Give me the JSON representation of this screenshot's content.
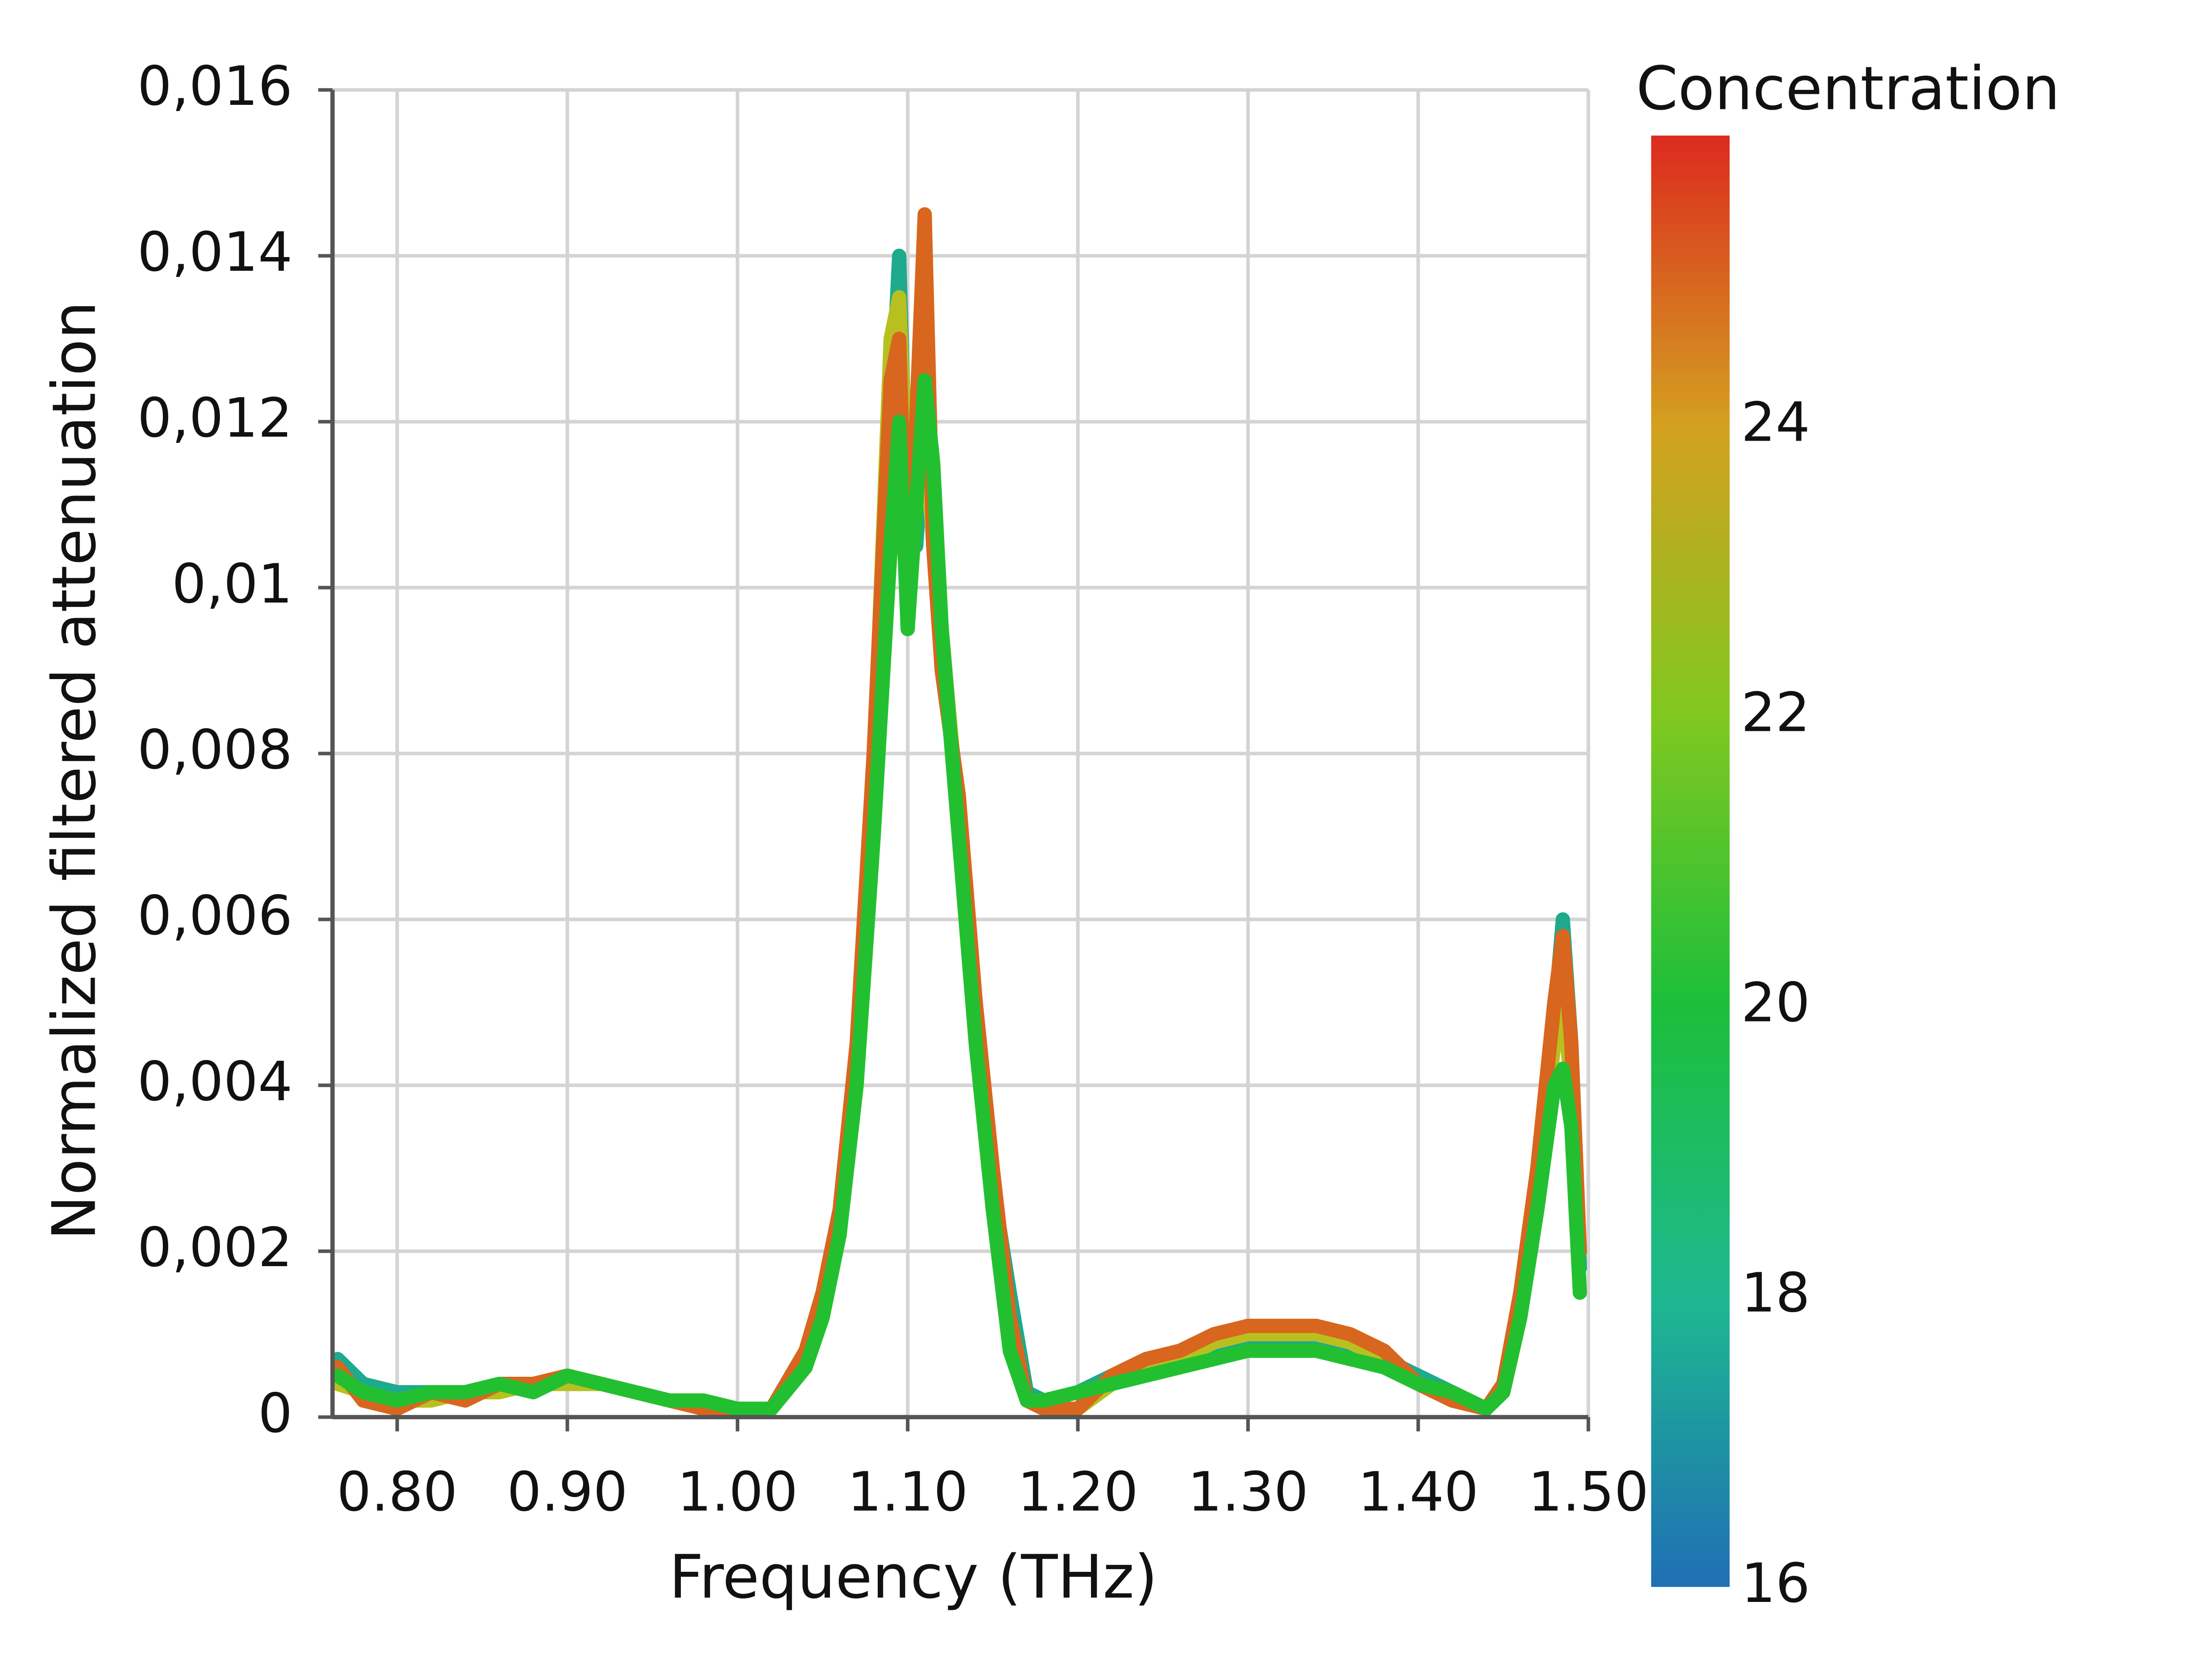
{
  "chart_data": {
    "type": "line",
    "x_label": "Frequency (THz)",
    "y_label": "Normalized filtered attenuation",
    "xlim": [
      0.762,
      1.5
    ],
    "xticks": [
      {
        "value": 0.8,
        "label": "0.80"
      },
      {
        "value": 0.9,
        "label": "0.90"
      },
      {
        "value": 1.0,
        "label": "1.00"
      },
      {
        "value": 1.1,
        "label": "1.10"
      },
      {
        "value": 1.2,
        "label": "1.20"
      },
      {
        "value": 1.3,
        "label": "1.30"
      },
      {
        "value": 1.4,
        "label": "1.40"
      },
      {
        "value": 1.5,
        "label": "1.50"
      }
    ],
    "ylim": [
      0,
      0.016
    ],
    "yticks": [
      0,
      {
        "value": 0.002,
        "label": "0,002"
      },
      {
        "value": 0.004,
        "label": "0,004"
      },
      {
        "value": 0.006,
        "label": "0,006"
      },
      {
        "value": 0.008,
        "label": "0,008"
      },
      {
        "value": 0.01,
        "label": "0,01"
      },
      {
        "value": 0.012,
        "label": "0,012"
      },
      {
        "value": 0.014,
        "label": "0,014"
      },
      {
        "value": 0.016,
        "label": "0,016"
      }
    ],
    "grid": true,
    "x": [
      0.765,
      0.78,
      0.8,
      0.82,
      0.84,
      0.86,
      0.88,
      0.9,
      0.92,
      0.94,
      0.96,
      0.98,
      1.0,
      1.02,
      1.04,
      1.05,
      1.06,
      1.07,
      1.08,
      1.09,
      1.095,
      1.1,
      1.105,
      1.11,
      1.115,
      1.12,
      1.13,
      1.14,
      1.15,
      1.16,
      1.17,
      1.18,
      1.2,
      1.22,
      1.24,
      1.26,
      1.28,
      1.3,
      1.32,
      1.34,
      1.36,
      1.38,
      1.4,
      1.42,
      1.44,
      1.45,
      1.46,
      1.47,
      1.48,
      1.485,
      1.49,
      1.495
    ],
    "series": [
      {
        "color": "#1eaa8c",
        "values": [
          0.0007,
          0.0004,
          0.0003,
          0.0003,
          0.0003,
          0.0004,
          0.0004,
          0.0004,
          0.0004,
          0.0003,
          0.0002,
          0.0002,
          0.0001,
          0.0001,
          0.0006,
          0.0012,
          0.0022,
          0.0042,
          0.0075,
          0.012,
          0.014,
          0.0105,
          0.0105,
          0.012,
          0.011,
          0.0095,
          0.0072,
          0.005,
          0.0028,
          0.0015,
          0.0003,
          0.0002,
          0.0003,
          0.0005,
          0.0006,
          0.0007,
          0.0008,
          0.0009,
          0.0009,
          0.0009,
          0.0008,
          0.0007,
          0.0005,
          0.0003,
          0.0001,
          0.0004,
          0.0013,
          0.0028,
          0.0048,
          0.006,
          0.0045,
          0.0018
        ]
      },
      {
        "color": "#b8c020",
        "values": [
          0.0004,
          0.0003,
          0.0002,
          0.0002,
          0.0003,
          0.0003,
          0.0004,
          0.0004,
          0.0004,
          0.0003,
          0.0002,
          0.0002,
          0.0001,
          0.0001,
          0.0006,
          0.0013,
          0.0023,
          0.0043,
          0.0078,
          0.013,
          0.0135,
          0.011,
          0.0115,
          0.012,
          0.0105,
          0.0095,
          0.0072,
          0.0048,
          0.0025,
          0.001,
          0.0002,
          0.0001,
          0.0001,
          0.0004,
          0.0006,
          0.0007,
          0.0009,
          0.001,
          0.001,
          0.001,
          0.0009,
          0.0007,
          0.0004,
          0.0002,
          0.0001,
          0.0004,
          0.0014,
          0.0028,
          0.0045,
          0.005,
          0.004,
          0.002
        ]
      },
      {
        "color": "#d8661e",
        "values": [
          0.0006,
          0.0002,
          0.0001,
          0.0003,
          0.0002,
          0.0004,
          0.0004,
          0.0005,
          0.0004,
          0.0003,
          0.0002,
          0.0001,
          0.0001,
          0.0001,
          0.0008,
          0.0015,
          0.0025,
          0.0045,
          0.008,
          0.0125,
          0.013,
          0.0095,
          0.012,
          0.0145,
          0.0105,
          0.009,
          0.0075,
          0.005,
          0.003,
          0.0012,
          0.0002,
          0.0001,
          0.0001,
          0.0005,
          0.0007,
          0.0008,
          0.001,
          0.0011,
          0.0011,
          0.0011,
          0.001,
          0.0008,
          0.0004,
          0.0002,
          0.0001,
          0.0004,
          0.0015,
          0.003,
          0.005,
          0.0058,
          0.0045,
          0.002
        ]
      },
      {
        "color": "#22c030",
        "values": [
          0.0005,
          0.0003,
          0.0002,
          0.0003,
          0.0003,
          0.0004,
          0.0003,
          0.0005,
          0.0004,
          0.0003,
          0.0002,
          0.0002,
          0.0001,
          0.0001,
          0.0006,
          0.0012,
          0.0022,
          0.004,
          0.007,
          0.0105,
          0.012,
          0.0095,
          0.011,
          0.0125,
          0.0115,
          0.0095,
          0.007,
          0.0045,
          0.0025,
          0.0008,
          0.0002,
          0.0002,
          0.0003,
          0.0004,
          0.0005,
          0.0006,
          0.0007,
          0.0008,
          0.0008,
          0.0008,
          0.0007,
          0.0006,
          0.0004,
          0.0003,
          0.0001,
          0.0003,
          0.0012,
          0.0025,
          0.004,
          0.0042,
          0.0035,
          0.0015
        ]
      }
    ],
    "colorbar": {
      "title": "Concentration",
      "lim": [
        16,
        26
      ],
      "ticks": [
        16,
        18,
        20,
        22,
        24
      ],
      "stops": [
        {
          "value": 16,
          "color": "#1f6fb5"
        },
        {
          "value": 18,
          "color": "#1eb890"
        },
        {
          "value": 20,
          "color": "#1cbf3a"
        },
        {
          "value": 22,
          "color": "#80c820"
        },
        {
          "value": 24,
          "color": "#d4a020"
        },
        {
          "value": 26,
          "color": "#dc2a1e"
        }
      ]
    }
  }
}
